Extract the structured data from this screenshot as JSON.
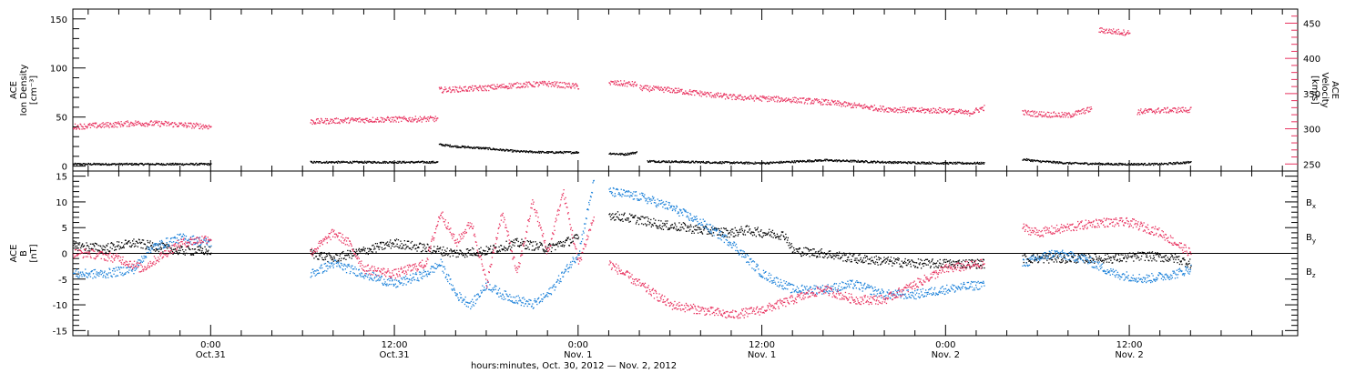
{
  "chart_data": {
    "type": "scatter",
    "xlabel": "hours:minutes, Oct. 30, 2012 — Nov. 2, 2012",
    "x_tick_labels": [
      {
        "time": "0:00",
        "date": "Oct.31",
        "hours": 24
      },
      {
        "time": "12:00",
        "date": "Oct.31",
        "hours": 36
      },
      {
        "time": "0:00",
        "date": "Nov. 1",
        "hours": 48
      },
      {
        "time": "12:00",
        "date": "Nov. 1",
        "hours": 60
      },
      {
        "time": "0:00",
        "date": "Nov. 2",
        "hours": 72
      },
      {
        "time": "12:00",
        "date": "Nov. 2",
        "hours": 84
      }
    ],
    "xlim_hours": [
      15,
      95
    ],
    "x_units": "hours since Oct. 30, 2012 0:00",
    "colors": {
      "black": "#000000",
      "blue": "#1a80d9",
      "pink": "#e8325f"
    },
    "panels": [
      {
        "id": "plasma",
        "ylabel_lines": [
          "ACE",
          "Ion Density",
          "[cm⁻³]"
        ],
        "ylim": [
          -5,
          160
        ],
        "y_ticks": [
          0,
          50,
          100,
          150
        ],
        "y2label_lines": [
          "ACE",
          "Velocity",
          "[km/s]"
        ],
        "y2lim": [
          240,
          470
        ],
        "y2_ticks": [
          250,
          300,
          350,
          400,
          450
        ],
        "series": [
          {
            "name": "Ion Density",
            "axis": "left",
            "color": "#000000",
            "segments": [
              {
                "x": [
                  15.0,
                  19.0,
                  24.0
                ],
                "y": [
                  2,
                  2,
                  2
                ]
              },
              {
                "x": [
                  30.5,
                  34.0,
                  38.8
                ],
                "y": [
                  4,
                  4,
                  4
                ]
              },
              {
                "x": [
                  38.9,
                  40.0,
                  42.0,
                  44.0,
                  46.0,
                  48.0
                ],
                "y": [
                  22,
                  20,
                  18,
                  15,
                  14,
                  14
                ]
              },
              {
                "x": [
                  50.0,
                  51.0,
                  51.8
                ],
                "y": [
                  13,
                  12,
                  14
                ]
              },
              {
                "x": [
                  52.5,
                  56.0,
                  60.0,
                  64.0,
                  68.0,
                  72.0,
                  74.5
                ],
                "y": [
                  5,
                  4,
                  3,
                  6,
                  4,
                  3,
                  3
                ]
              },
              {
                "x": [
                  77.0,
                  78.0,
                  80.0,
                  83.0,
                  86.0,
                  88.0
                ],
                "y": [
                  7,
                  5,
                  3,
                  2,
                  2,
                  4
                ]
              }
            ]
          },
          {
            "name": "Velocity",
            "axis": "right",
            "color": "#e8325f",
            "segments": [
              {
                "x": [
                  15.0,
                  17.0,
                  19.0,
                  21.0,
                  24.0
                ],
                "y": [
                  303,
                  305,
                  308,
                  307,
                  303
                ]
              },
              {
                "x": [
                  30.5,
                  33.0,
                  35.0,
                  38.8
                ],
                "y": [
                  310,
                  312,
                  313,
                  314
                ]
              },
              {
                "x": [
                  38.9,
                  40.0,
                  42.0,
                  44.0,
                  46.0,
                  48.0
                ],
                "y": [
                  355,
                  356,
                  358,
                  362,
                  364,
                  360
                ]
              },
              {
                "x": [
                  50.0,
                  51.0,
                  51.8
                ],
                "y": [
                  365,
                  364,
                  363
                ]
              },
              {
                "x": [
                  52.0,
                  54.0,
                  56.0,
                  58.0,
                  60.0,
                  62.0,
                  64.0,
                  66.0,
                  68.0,
                  70.0,
                  72.0,
                  73.5,
                  74.5
                ],
                "y": [
                  358,
                  355,
                  350,
                  345,
                  343,
                  341,
                  338,
                  333,
                  328,
                  326,
                  326,
                  322,
                  330
                ]
              },
              {
                "x": [
                  77.0,
                  78.0,
                  80.0,
                  81.5
                ],
                "y": [
                  323,
                  321,
                  319,
                  328
                ]
              },
              {
                "x": [
                  82.0,
                  83.0,
                  84.0
                ],
                "y": [
                  440,
                  438,
                  436
                ]
              },
              {
                "x": [
                  84.5,
                  86.0,
                  88.0
                ],
                "y": [
                  324,
                  326,
                  327
                ]
              }
            ]
          }
        ]
      },
      {
        "id": "magnetic",
        "ylabel_lines": [
          "ACE",
          "B",
          "[nT]"
        ],
        "ylim": [
          -16,
          16
        ],
        "y_ticks": [
          -15,
          -10,
          -5,
          0,
          5,
          10,
          15
        ],
        "zero_line": true,
        "series": [
          {
            "name": "Bx",
            "legend": "B",
            "legend_sub": "x",
            "color": "#000000",
            "segments": [
              {
                "x": [
                  15.0,
                  17.0,
                  19.0,
                  21.0,
                  22.0,
                  24.0
                ],
                "y": [
                  1.5,
                  1.0,
                  2.0,
                  1.0,
                  0.5,
                  0.5
                ]
              },
              {
                "x": [
                  30.5,
                  32.0,
                  34.0,
                  36.0,
                  38.0,
                  40.0,
                  42.0,
                  44.0,
                  46.0,
                  48.0
                ],
                "y": [
                  0,
                  -1,
                  0.5,
                  2,
                  1,
                  0,
                  0.5,
                  2,
                  1,
                  3
                ]
              },
              {
                "x": [
                  50.0,
                  51.0,
                  52.0,
                  53.5,
                  55.0,
                  56.0,
                  58.0,
                  59.0,
                  60.0,
                  61.5,
                  62.0,
                  64.0,
                  66.0,
                  68.0,
                  70.0,
                  72.0,
                  74.5
                ],
                "y": [
                  7.5,
                  7.0,
                  6.5,
                  5.5,
                  5.0,
                  4.5,
                  4.0,
                  4.5,
                  4.0,
                  3.5,
                  0.5,
                  0,
                  -1,
                  -1.5,
                  -2,
                  -2,
                  -2
                ]
              },
              {
                "x": [
                  77.0,
                  79.0,
                  81.0,
                  83.0,
                  85.0,
                  87.0,
                  88.0
                ],
                "y": [
                  -1,
                  -1,
                  -1,
                  -1,
                  -0.5,
                  -1,
                  -2
                ]
              }
            ]
          },
          {
            "name": "By",
            "legend": "B",
            "legend_sub": "y",
            "color": "#1a80d9",
            "segments": [
              {
                "x": [
                  15.0,
                  17.0,
                  19.0,
                  20.0,
                  22.0,
                  24.0
                ],
                "y": [
                  -4,
                  -4,
                  -3,
                  1,
                  3,
                  2
                ]
              },
              {
                "x": [
                  30.5,
                  32.0,
                  34.0,
                  36.0,
                  38.0,
                  39.0,
                  40.0,
                  41.0,
                  42.0,
                  43.0,
                  44.0,
                  45.0,
                  46.0,
                  47.0,
                  48.0,
                  49.0
                ],
                "y": [
                  -4,
                  -2,
                  -4,
                  -6,
                  -4,
                  -2,
                  -8,
                  -10,
                  -6,
                  -8,
                  -9,
                  -10,
                  -8,
                  -4,
                  0,
                  14
                ]
              },
              {
                "x": [
                  50.0,
                  52.0,
                  54.0,
                  56.0,
                  58.0,
                  60.0,
                  62.0,
                  64.0,
                  66.0,
                  68.0,
                  70.0,
                  72.0,
                  74.5
                ],
                "y": [
                  12,
                  11,
                  9,
                  6,
                  2,
                  -4,
                  -7,
                  -7,
                  -6,
                  -8,
                  -8,
                  -7,
                  -6
                ]
              },
              {
                "x": [
                  77.0,
                  79.0,
                  81.0,
                  83.0,
                  85.0,
                  87.0,
                  88.0
                ],
                "y": [
                  -2,
                  0,
                  -1,
                  -4,
                  -5,
                  -4,
                  -3
                ]
              }
            ]
          },
          {
            "name": "Bz",
            "legend": "B",
            "legend_sub": "z",
            "color": "#e8325f",
            "segments": [
              {
                "x": [
                  15.0,
                  16.0,
                  18.0,
                  19.5,
                  21.0,
                  22.0,
                  24.0
                ],
                "y": [
                  0,
                  0,
                  -1,
                  -3,
                  0,
                  2,
                  3
                ]
              },
              {
                "x": [
                  30.5,
                  32.0,
                  33.0,
                  34.0,
                  36.0,
                  38.0,
                  39.0,
                  40.0,
                  41.0,
                  42.0,
                  43.0,
                  44.0,
                  45.0,
                  46.0,
                  47.0,
                  48.0,
                  49.0
                ],
                "y": [
                  0,
                  4,
                  2,
                  -3,
                  -4,
                  -2,
                  8,
                  2,
                  6,
                  -6,
                  8,
                  -4,
                  10,
                  0,
                  12,
                  -2,
                  7
                ]
              },
              {
                "x": [
                  50.0,
                  52.0,
                  54.0,
                  56.0,
                  58.0,
                  60.0,
                  62.0,
                  64.0,
                  66.0,
                  68.0,
                  70.0,
                  72.0,
                  74.5
                ],
                "y": [
                  -2,
                  -6,
                  -10,
                  -11,
                  -12,
                  -11,
                  -9,
                  -7,
                  -9,
                  -9,
                  -6,
                  -3,
                  -2
                ]
              },
              {
                "x": [
                  77.0,
                  78.0,
                  80.0,
                  82.0,
                  84.0,
                  86.0,
                  88.0
                ],
                "y": [
                  5,
                  4,
                  5,
                  6,
                  6,
                  4,
                  0
                ]
              }
            ]
          }
        ]
      }
    ]
  }
}
